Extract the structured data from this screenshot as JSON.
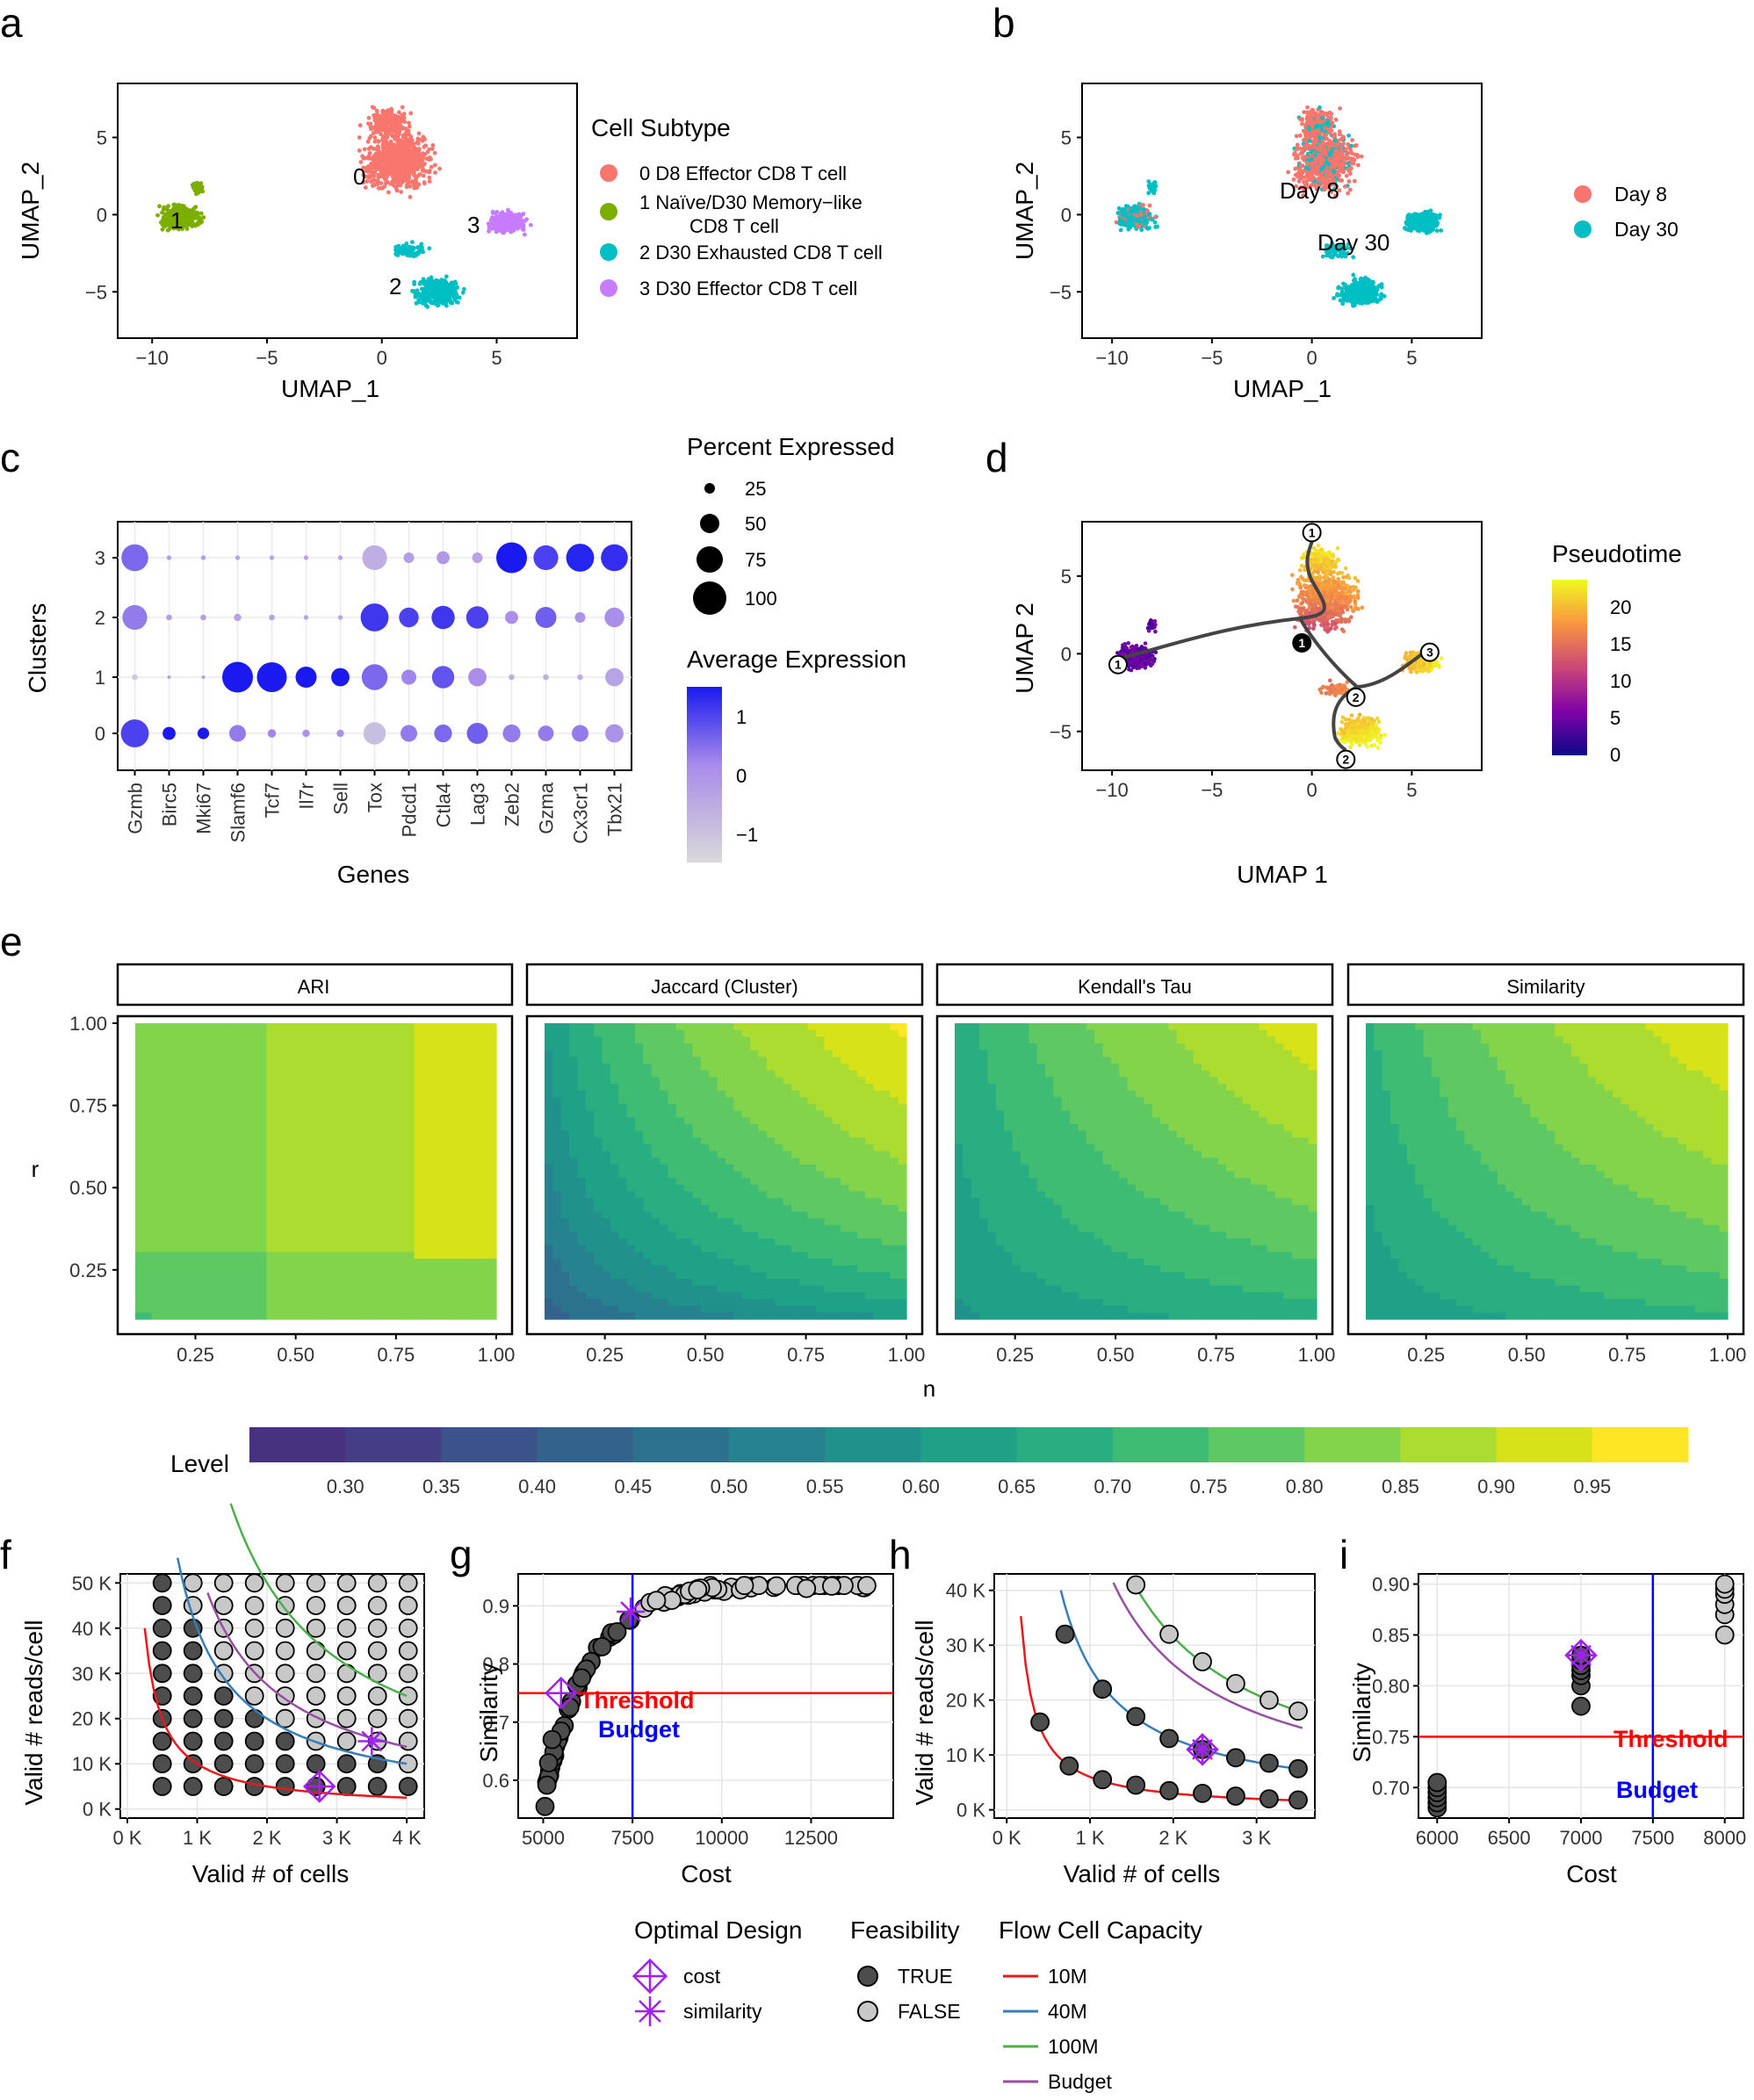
{
  "panel_letters": [
    "a",
    "b",
    "c",
    "d",
    "e",
    "f",
    "g",
    "h",
    "i"
  ],
  "colors": {
    "c0": "#F8766D",
    "c1": "#7CAE00",
    "c2": "#00BFC4",
    "c3": "#C77CFF",
    "threshold": "#FF0000",
    "budget": "#0000FF",
    "optimal": "#A020F0",
    "line10M": "#E41A1C",
    "line40M": "#377EB8",
    "line100M": "#4DAF4A",
    "lineBudget": "#984EA3"
  },
  "chart_data": [
    {
      "id": "a",
      "type": "scatter",
      "title": "",
      "xlabel": "UMAP_1",
      "ylabel": "UMAP_2",
      "xlim": [
        -11.5,
        8.5
      ],
      "ylim": [
        -8,
        8.5
      ],
      "xticks": [
        -10,
        -5,
        0,
        5
      ],
      "yticks": [
        -5,
        0,
        5
      ],
      "legend_title": "Cell Subtype",
      "legend": [
        "0 D8 Effector CD8 T cell",
        "1 Naïve/D30 Memory−like",
        "CD8 T cell",
        "2 D30 Exhausted CD8 T cell",
        "3 D30 Effector CD8 T cell"
      ],
      "cluster_labels": [
        "0",
        "1",
        "2",
        "3"
      ]
    },
    {
      "id": "b",
      "type": "scatter",
      "title": "",
      "xlabel": "UMAP_1",
      "ylabel": "UMAP_2",
      "xlim": [
        -11.5,
        8.5
      ],
      "ylim": [
        -8,
        8.5
      ],
      "xticks": [
        -10,
        -5,
        0,
        5
      ],
      "yticks": [
        -5,
        0,
        5
      ],
      "legend": [
        "Day 8",
        "Day 30"
      ],
      "point_labels": [
        "Day 8",
        "Day 30"
      ]
    },
    {
      "id": "c",
      "type": "scatter",
      "subtype": "dotplot",
      "xlabel": "Genes",
      "ylabel": "Clusters",
      "genes": [
        "Gzmb",
        "Birc5",
        "Mki67",
        "Slamf6",
        "Tcf7",
        "Il7r",
        "Sell",
        "Tox",
        "Pdcd1",
        "Ctla4",
        "Lag3",
        "Zeb2",
        "Gzma",
        "Cx3cr1",
        "Tbx21"
      ],
      "clusters": [
        "0",
        "1",
        "2",
        "3"
      ],
      "pct_title": "Percent Expressed",
      "pct_ticks": [
        "25",
        "50",
        "75",
        "100"
      ],
      "avg_title": "Average Expression",
      "avg_ticks": [
        "1",
        "0",
        "−1"
      ],
      "pct": [
        [
          70,
          15,
          12,
          25,
          6,
          5,
          5,
          45,
          25,
          28,
          40,
          28,
          22,
          25,
          30
        ],
        [
          3,
          0,
          0,
          85,
          80,
          40,
          30,
          60,
          20,
          45,
          30,
          3,
          3,
          3,
          30
        ],
        [
          55,
          3,
          3,
          5,
          3,
          2,
          2,
          70,
          35,
          48,
          45,
          15,
          40,
          10,
          35
        ],
        [
          65,
          2,
          2,
          2,
          2,
          2,
          2,
          55,
          10,
          15,
          10,
          85,
          55,
          70,
          65
        ]
      ],
      "avg": [
        [
          0.9,
          1.3,
          1.3,
          0.3,
          0.2,
          0.0,
          0.0,
          -0.8,
          0.3,
          0.5,
          0.6,
          0.3,
          0.3,
          0.3,
          0.0
        ],
        [
          -1.0,
          -0.3,
          -0.3,
          1.3,
          1.3,
          1.3,
          1.3,
          0.5,
          0.2,
          0.7,
          0.1,
          -0.5,
          -0.5,
          -0.5,
          -0.3
        ],
        [
          0.3,
          -0.2,
          -0.2,
          -0.3,
          -0.3,
          -0.3,
          -0.3,
          1.0,
          0.9,
          1.0,
          0.9,
          0.1,
          0.6,
          0.0,
          0.1
        ],
        [
          0.5,
          -0.2,
          -0.2,
          -0.3,
          -0.3,
          -0.3,
          -0.3,
          -0.5,
          -0.2,
          -0.1,
          -0.3,
          1.3,
          0.9,
          1.2,
          1.1
        ]
      ]
    },
    {
      "id": "d",
      "type": "scatter",
      "subtype": "trajectory",
      "xlabel": "UMAP 1",
      "ylabel": "UMAP 2",
      "xlim": [
        -11.5,
        8.5
      ],
      "ylim": [
        -7.5,
        8.5
      ],
      "xticks": [
        -10,
        -5,
        0,
        5
      ],
      "yticks": [
        -5,
        0,
        5
      ],
      "legend_title": "Pseudotime",
      "legend_ticks": [
        "20",
        "15",
        "10",
        "5",
        "0"
      ],
      "nodes": [
        {
          "label": "1",
          "x": -9.7,
          "y": -0.7
        },
        {
          "label": "1",
          "x": 0,
          "y": 7.8
        },
        {
          "label": "1",
          "x": -0.5,
          "y": 0.7
        },
        {
          "label": "2",
          "x": 2.2,
          "y": -2.8
        },
        {
          "label": "2",
          "x": 1.7,
          "y": -6.8
        },
        {
          "label": "3",
          "x": 5.9,
          "y": 0.1
        }
      ]
    },
    {
      "id": "e",
      "type": "heatmap",
      "subtype": "contour",
      "xlabel": "n",
      "ylabel": "r",
      "xticks": [
        "0.25",
        "0.50",
        "0.75",
        "1.00"
      ],
      "yticks": [
        "1.00",
        "0.75",
        "0.50",
        "0.25"
      ],
      "facets": [
        "ARI",
        "Jaccard (Cluster)",
        "Kendall's Tau",
        "Similarity"
      ],
      "legend_title": "Level",
      "levels": [
        "0.30",
        "0.35",
        "0.40",
        "0.45",
        "0.50",
        "0.55",
        "0.60",
        "0.65",
        "0.70",
        "0.75",
        "0.80",
        "0.85",
        "0.90",
        "0.95"
      ],
      "palette": [
        "#46327E",
        "#433E85",
        "#3B528B",
        "#33638D",
        "#2C728E",
        "#26828E",
        "#21918C",
        "#1FA188",
        "#28AE80",
        "#3FBC73",
        "#5EC962",
        "#84D44B",
        "#ADDC30",
        "#D8E219",
        "#FDE725"
      ],
      "field_params": [
        {
          "base": 0.79,
          "span": 0.21,
          "p": 1.0,
          "q": 0.0
        },
        {
          "base": 0.2,
          "span": 0.76,
          "p": 0.28,
          "q": 0.28
        },
        {
          "base": 0.55,
          "span": 0.38,
          "p": 0.5,
          "q": 0.5
        },
        {
          "base": 0.55,
          "span": 0.39,
          "p": 0.45,
          "q": 0.45
        }
      ]
    },
    {
      "id": "f",
      "type": "scatter",
      "xlabel": "Valid # of cells",
      "ylabel": "Valid # reads/cell",
      "xticks": [
        "0 K",
        "1 K",
        "2 K",
        "3 K",
        "4 K"
      ],
      "yticks": [
        "0 K",
        "10 K",
        "20 K",
        "30 K",
        "40 K",
        "50 K"
      ],
      "xlim": [
        -100,
        4250
      ],
      "ylim": [
        -2000,
        52000
      ],
      "optimal_cost": {
        "x": 2750,
        "y": 5000
      },
      "optimal_similarity": {
        "x": 3500,
        "y": 15000
      }
    },
    {
      "id": "g",
      "type": "scatter",
      "xlabel": "Cost",
      "ylabel": "Similarity",
      "xticks": [
        "5000",
        "7500",
        "10000",
        "12500"
      ],
      "yticks": [
        "0.6",
        "0.7",
        "0.8",
        "0.9"
      ],
      "xlim": [
        4300,
        14800
      ],
      "ylim": [
        0.535,
        0.955
      ],
      "threshold": 0.75,
      "budget": 7500,
      "threshold_label": "Threshold",
      "budget_label": "Budget"
    },
    {
      "id": "h",
      "type": "scatter",
      "xlabel": "Valid # of cells",
      "ylabel": "Valid # reads/cell",
      "xticks": [
        "0 K",
        "1 K",
        "2 K",
        "3 K"
      ],
      "yticks": [
        "0 K",
        "10 K",
        "20 K",
        "30 K",
        "40 K"
      ],
      "xlim": [
        -150,
        3700
      ],
      "ylim": [
        -1500,
        43000
      ],
      "points_true": [
        [
          400,
          16000
        ],
        [
          750,
          8000
        ],
        [
          1150,
          5500
        ],
        [
          1550,
          4500
        ],
        [
          1950,
          3500
        ],
        [
          2350,
          3000
        ],
        [
          2750,
          2500
        ],
        [
          3150,
          2000
        ],
        [
          3500,
          1800
        ],
        [
          700,
          32000
        ],
        [
          1150,
          22000
        ],
        [
          1550,
          17000
        ],
        [
          1950,
          13000
        ],
        [
          2350,
          11000
        ],
        [
          2750,
          9500
        ],
        [
          3150,
          8500
        ],
        [
          3500,
          7500
        ]
      ],
      "points_false": [
        [
          1550,
          41000
        ],
        [
          1950,
          32000
        ],
        [
          2350,
          27000
        ],
        [
          2750,
          23000
        ],
        [
          3150,
          20000
        ],
        [
          3500,
          18000
        ]
      ],
      "optimal": {
        "x": 2350,
        "y": 11000
      }
    },
    {
      "id": "i",
      "type": "scatter",
      "xlabel": "Cost",
      "ylabel": "Similarity",
      "xticks": [
        "6000",
        "6500",
        "7000",
        "7500",
        "8000"
      ],
      "yticks": [
        "0.70",
        "0.75",
        "0.80",
        "0.85",
        "0.90"
      ],
      "xlim": [
        5870,
        8130
      ],
      "ylim": [
        0.67,
        0.91
      ],
      "threshold": 0.75,
      "budget": 7500,
      "threshold_label": "Threshold",
      "budget_label": "Budget",
      "points": [
        [
          6000,
          0.68
        ],
        [
          6000,
          0.685
        ],
        [
          6000,
          0.69
        ],
        [
          6000,
          0.695
        ],
        [
          6000,
          0.7
        ],
        [
          6000,
          0.705
        ],
        [
          7000,
          0.78
        ],
        [
          7000,
          0.8
        ],
        [
          7000,
          0.81
        ],
        [
          7000,
          0.815
        ],
        [
          7000,
          0.82
        ],
        [
          7000,
          0.825
        ],
        [
          7000,
          0.83
        ],
        [
          8000,
          0.85
        ],
        [
          8000,
          0.87
        ],
        [
          8000,
          0.88
        ],
        [
          8000,
          0.89
        ],
        [
          8000,
          0.895
        ],
        [
          8000,
          0.9
        ]
      ],
      "optimal": {
        "x": 7000,
        "y": 0.83
      }
    }
  ],
  "bottom_legend": {
    "optimal_title": "Optimal Design",
    "optimal_items": [
      "cost",
      "similarity"
    ],
    "feas_title": "Feasibility",
    "feas_items": [
      "TRUE",
      "FALSE"
    ],
    "flow_title": "Flow Cell Capacity",
    "flow_items": [
      "10M",
      "40M",
      "100M",
      "Budget"
    ]
  }
}
